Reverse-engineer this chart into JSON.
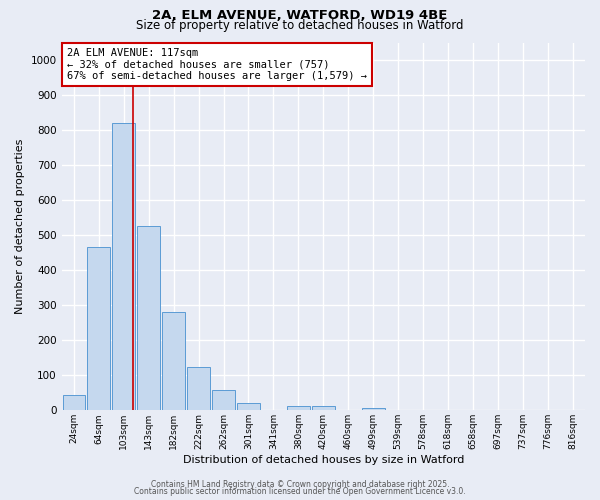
{
  "title1": "2A, ELM AVENUE, WATFORD, WD19 4BE",
  "title2": "Size of property relative to detached houses in Watford",
  "xlabel": "Distribution of detached houses by size in Watford",
  "ylabel": "Number of detached properties",
  "bar_labels": [
    "24sqm",
    "64sqm",
    "103sqm",
    "143sqm",
    "182sqm",
    "222sqm",
    "262sqm",
    "301sqm",
    "341sqm",
    "380sqm",
    "420sqm",
    "460sqm",
    "499sqm",
    "539sqm",
    "578sqm",
    "618sqm",
    "658sqm",
    "697sqm",
    "737sqm",
    "776sqm",
    "816sqm"
  ],
  "bar_values": [
    45,
    465,
    820,
    525,
    280,
    125,
    57,
    22,
    0,
    12,
    12,
    0,
    7,
    0,
    0,
    0,
    0,
    0,
    0,
    0,
    0
  ],
  "bar_color": "#c5d8ee",
  "bar_edge_color": "#5b9bd5",
  "background_color": "#e8ecf5",
  "grid_color": "#ffffff",
  "red_line_x": 2.35,
  "red_line_color": "#cc0000",
  "annotation_text": "2A ELM AVENUE: 117sqm\n← 32% of detached houses are smaller (757)\n67% of semi-detached houses are larger (1,579) →",
  "annotation_box_color": "#ffffff",
  "annotation_box_edge": "#cc0000",
  "ylim": [
    0,
    1050
  ],
  "yticks": [
    0,
    100,
    200,
    300,
    400,
    500,
    600,
    700,
    800,
    900,
    1000
  ],
  "footer1": "Contains HM Land Registry data © Crown copyright and database right 2025.",
  "footer2": "Contains public sector information licensed under the Open Government Licence v3.0."
}
